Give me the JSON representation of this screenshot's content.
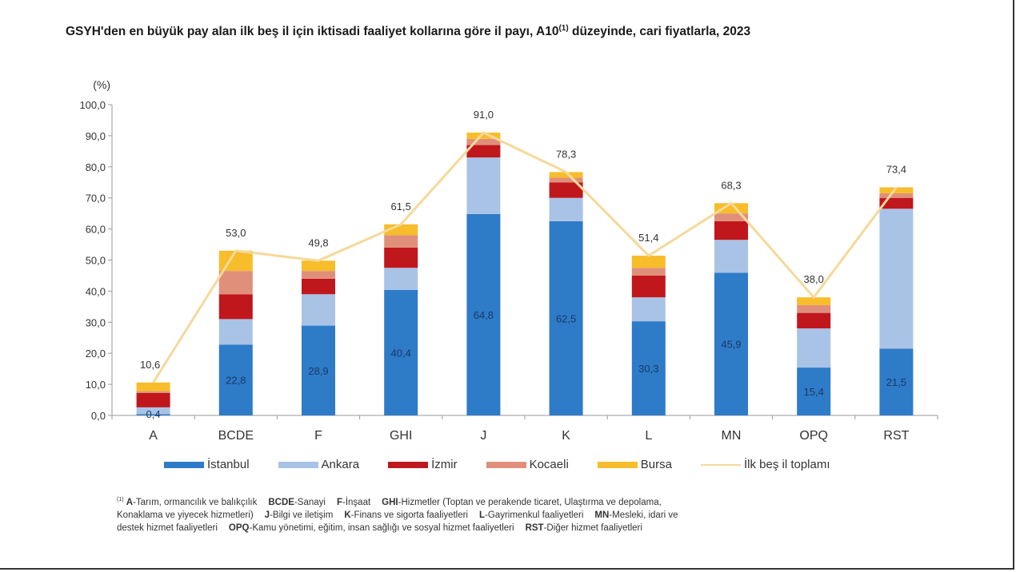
{
  "title": {
    "text": "GSYH'den en büyük pay alan ilk beş il için iktisadi faaliyet kollarına göre il payı, A10",
    "sup": "(1)",
    "text_after": " düzeyinde, cari fiyatlarla, 2023"
  },
  "chart_data": {
    "type": "bar",
    "stacked": true,
    "ylabel": "(%)",
    "ylim": [
      0,
      100
    ],
    "yticks": [
      "0,0",
      "10,0",
      "20,0",
      "30,0",
      "40,0",
      "50,0",
      "60,0",
      "70,0",
      "80,0",
      "90,0",
      "100,0"
    ],
    "categories": [
      "A",
      "BCDE",
      "F",
      "GHI",
      "J",
      "K",
      "L",
      "MN",
      "OPQ",
      "RST"
    ],
    "series": [
      {
        "name": "İstanbul",
        "color": "#2e7bc8",
        "values": [
          0.4,
          22.8,
          28.9,
          40.4,
          64.8,
          62.5,
          30.3,
          45.9,
          15.4,
          21.5
        ]
      },
      {
        "name": "Ankara",
        "color": "#a9c3e6",
        "values": [
          2.2,
          8.2,
          10.1,
          7.1,
          18.2,
          7.5,
          7.7,
          10.6,
          12.6,
          45.0
        ]
      },
      {
        "name": "İzmir",
        "color": "#c0171d",
        "values": [
          4.6,
          8.0,
          5.0,
          6.5,
          4.0,
          5.0,
          7.0,
          6.0,
          5.0,
          3.5
        ]
      },
      {
        "name": "Kocaeli",
        "color": "#e0907a",
        "values": [
          0.6,
          7.5,
          2.5,
          4.0,
          2.0,
          1.5,
          2.5,
          2.5,
          2.5,
          1.5
        ]
      },
      {
        "name": "Bursa",
        "color": "#f7bd2a",
        "values": [
          2.8,
          6.5,
          3.3,
          3.5,
          2.0,
          1.8,
          3.9,
          3.3,
          2.5,
          1.9
        ]
      }
    ],
    "istanbul_labels": [
      "0,4",
      "22,8",
      "28,9",
      "40,4",
      "64,8",
      "62,5",
      "30,3",
      "45,9",
      "15,4",
      "21,5"
    ],
    "line": {
      "name": "İlk beş il toplamı",
      "color": "#f5d99a",
      "values": [
        10.6,
        53.0,
        49.8,
        61.5,
        91.0,
        78.3,
        51.4,
        68.3,
        38.0,
        73.4
      ],
      "labels": [
        "10,6",
        "53,0",
        "49,8",
        "61,5",
        "91,0",
        "78,3",
        "51,4",
        "68,3",
        "38,0",
        "73,4"
      ]
    },
    "legend_position": "bottom"
  },
  "legend": [
    "İstanbul",
    "Ankara",
    "İzmir",
    "Kocaeli",
    "Bursa",
    "İlk beş il toplamı"
  ],
  "footnote": {
    "marker": "(1)",
    "lines": [
      [
        {
          "code": "A",
          "text": "-Tarım, ormancılık ve balıkçılık"
        },
        {
          "code": "BCDE",
          "text": "-Sanayi"
        },
        {
          "code": "F",
          "text": "-İnşaat"
        },
        {
          "code": "GHI",
          "text": "-Hizmetler (Toptan ve perakende ticaret, Ulaştırma ve depolama,"
        }
      ],
      [
        {
          "code": "",
          "text": "Konaklama ve yiyecek hizmetleri)"
        },
        {
          "code": "J",
          "text": "-Bilgi ve iletişim"
        },
        {
          "code": "K",
          "text": "-Finans ve sigorta faaliyetleri"
        },
        {
          "code": "L",
          "text": "-Gayrimenkul faaliyetleri"
        },
        {
          "code": "MN",
          "text": "-Mesleki, idari ve"
        }
      ],
      [
        {
          "code": "",
          "text": "destek hizmet faaliyetleri"
        },
        {
          "code": "OPQ",
          "text": "-Kamu yönetimi, eğitim, insan sağlığı ve sosyal hizmet faaliyetleri"
        },
        {
          "code": "RST",
          "text": "-Diğer hizmet faaliyetleri"
        }
      ]
    ]
  }
}
